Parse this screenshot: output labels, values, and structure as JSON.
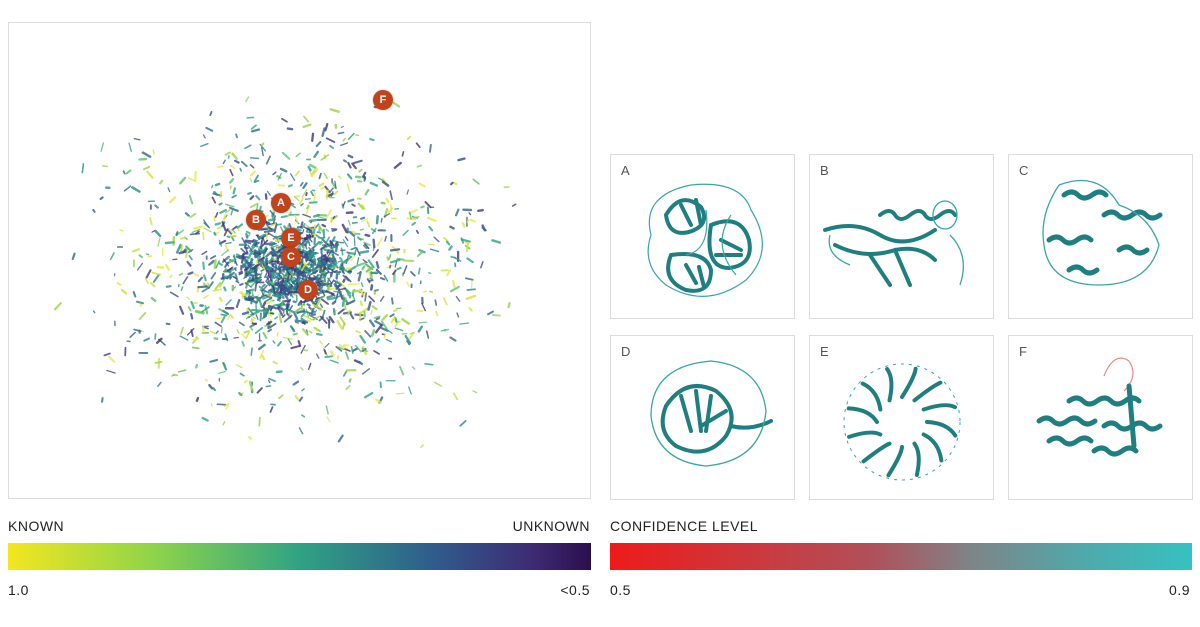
{
  "structures": [
    {
      "letter": "A"
    },
    {
      "letter": "B"
    },
    {
      "letter": "C"
    },
    {
      "letter": "D"
    },
    {
      "letter": "E"
    },
    {
      "letter": "F"
    }
  ],
  "map_markers": [
    "A",
    "B",
    "E",
    "C",
    "D",
    "F"
  ],
  "known_scale": {
    "left_label": "KNOWN",
    "right_label": "UNKNOWN",
    "min_label": "1.0",
    "max_label": "<0.5"
  },
  "confidence_scale": {
    "title": "CONFIDENCE LEVEL",
    "min_label": "0.5",
    "max_label": "0.9"
  },
  "colors": {
    "marker": "#c0431c",
    "ribbon": "#1f7f80",
    "known": "#f4e61f",
    "unknown": "#2b0f4d",
    "low_conf": "#ee1b1b",
    "high_conf": "#36c1c0"
  }
}
